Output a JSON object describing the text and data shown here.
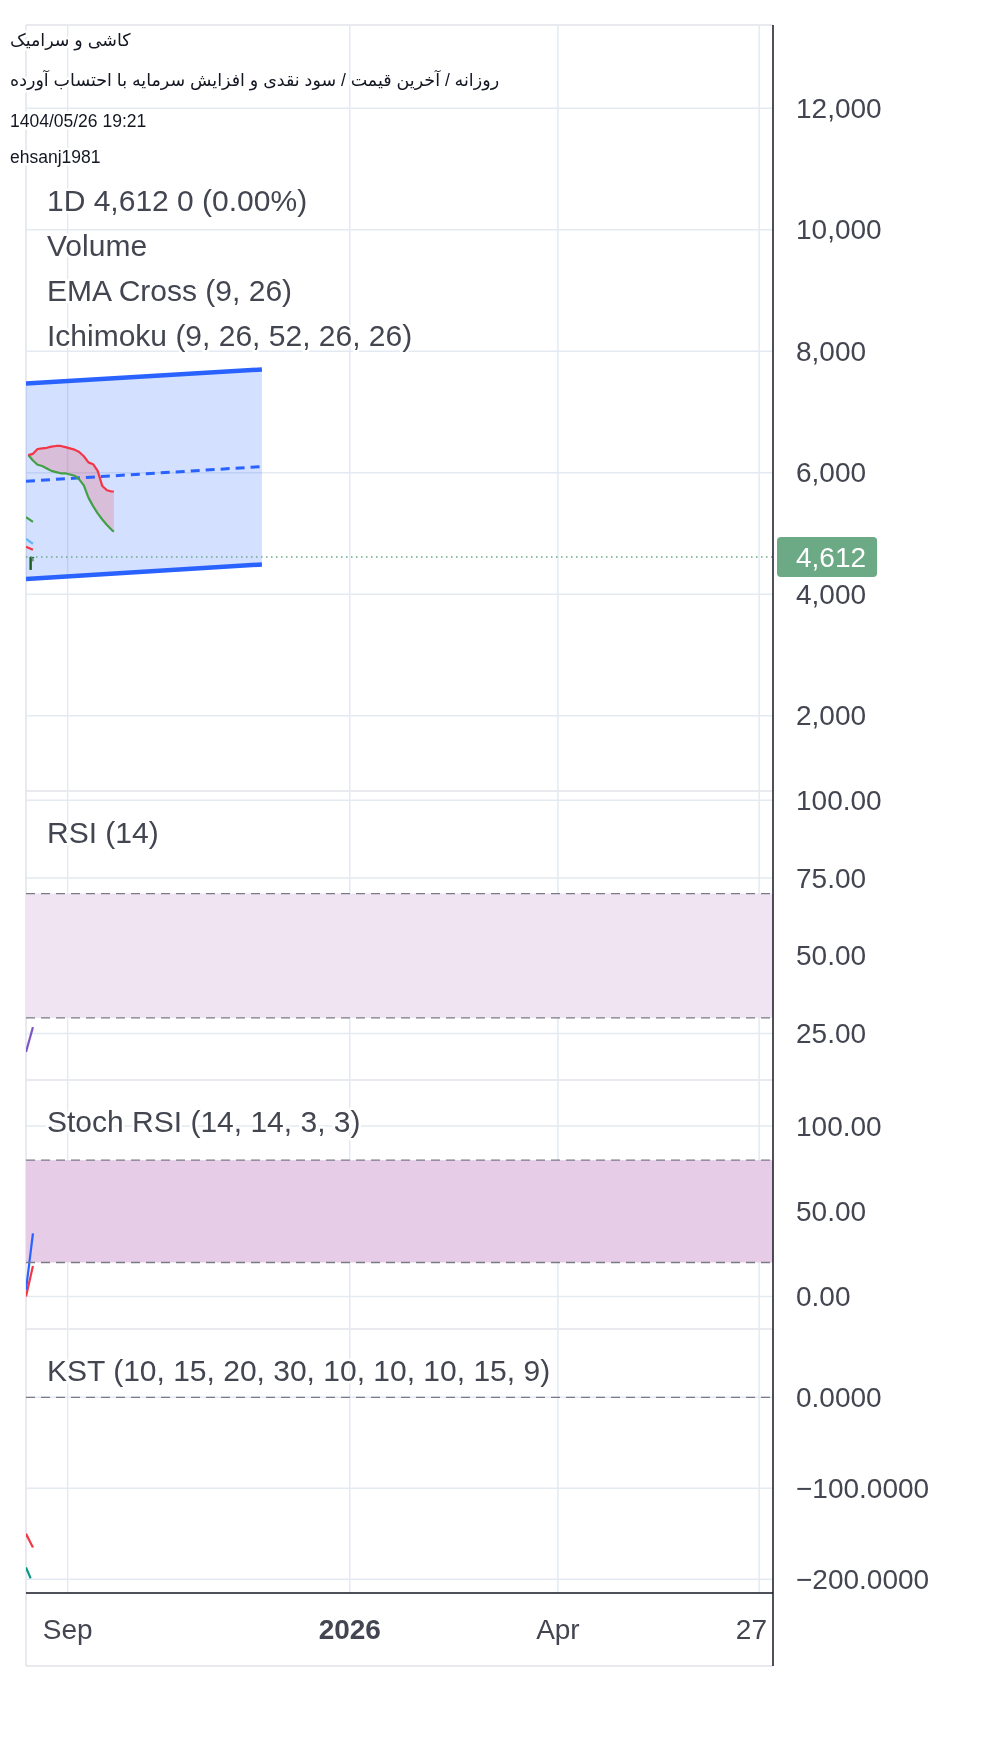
{
  "chart_data": [
    {
      "type": "line",
      "title": "کاشی و سرامیک",
      "subtitle": "روزانه / آخرین قیمت / سود نقدی و افزایش سرمایه با احتساب آورده",
      "annotations": [
        "1404/05/26 19:21",
        "ehsanj1981",
        "1D 4,612 0 (0.00%)",
        "Volume",
        "EMA Cross (9, 26)",
        "Ichimoku (9, 26, 52, 26, 26)"
      ],
      "xlim": [
        "2025-08-14",
        "2026-07-03"
      ],
      "xticks": [
        {
          "value": "2025-09-01",
          "label": null
        },
        {
          "value": "2026-01-01",
          "label": null
        },
        {
          "value": "2026-04-01",
          "label": null
        },
        {
          "value": "2026-06-27",
          "label": null
        }
      ],
      "ylim": [
        760,
        13370
      ],
      "yticks": [
        {
          "value": 2000,
          "label": "2,000"
        },
        {
          "value": 4000,
          "label": "4,000"
        },
        {
          "value": 6000,
          "label": "6,000"
        },
        {
          "value": 8000,
          "label": "8,000"
        },
        {
          "value": 10000,
          "label": "10,000"
        },
        {
          "value": 12000,
          "label": "12,000"
        }
      ],
      "grid": true,
      "tick_labels": "y",
      "series": [
        {
          "color": "#2962ff",
          "x": [
            "2025-08-14",
            "2025-11-24"
          ],
          "values": [
            7470,
            7700
          ]
        },
        {
          "color": "#2962ff",
          "x": [
            "2025-08-14",
            "2025-11-24"
          ],
          "values": [
            4250,
            4490
          ]
        },
        {
          "color": "#2962ff",
          "line_style": "dashed",
          "x": [
            "2025-08-14",
            "2025-11-24"
          ],
          "values": [
            5860,
            6100
          ],
          "lower": [
            4250,
            4490
          ],
          "upper": [
            7470,
            7700
          ]
        },
        {
          "color": "#43a047",
          "x": [
            "2025-08-15",
            "2025-08-17",
            "2025-08-19",
            "2025-08-21",
            "2025-08-23",
            "2025-08-25",
            "2025-08-27",
            "2025-08-29",
            "2025-08-31",
            "2025-09-02",
            "2025-09-04",
            "2025-09-06",
            "2025-09-08",
            "2025-09-10",
            "2025-09-12",
            "2025-09-14",
            "2025-09-16",
            "2025-09-18",
            "2025-09-20",
            "2025-09-21"
          ],
          "values": [
            6290,
            6200,
            6130,
            6110,
            6070,
            6030,
            6010,
            5990,
            5990,
            5970,
            5950,
            5890,
            5790,
            5590,
            5450,
            5330,
            5230,
            5140,
            5060,
            5030
          ]
        },
        {
          "color": "#f23645",
          "x": [
            "2025-08-15",
            "2025-08-17",
            "2025-08-19",
            "2025-08-21",
            "2025-08-23",
            "2025-08-25",
            "2025-08-27",
            "2025-08-29",
            "2025-08-31",
            "2025-09-02",
            "2025-09-04",
            "2025-09-06",
            "2025-09-08",
            "2025-09-10",
            "2025-09-12",
            "2025-09-14",
            "2025-09-16",
            "2025-09-18",
            "2025-09-20",
            "2025-09-21"
          ],
          "values": [
            6290,
            6310,
            6390,
            6400,
            6410,
            6430,
            6440,
            6440,
            6420,
            6400,
            6380,
            6340,
            6270,
            6170,
            6140,
            6030,
            5780,
            5710,
            5690,
            5690
          ],
          "lower": [
            6290,
            6200,
            6130,
            6110,
            6070,
            6030,
            6010,
            5990,
            5990,
            5970,
            5950,
            5890,
            5790,
            5590,
            5450,
            5330,
            5230,
            5140,
            5060,
            5030
          ],
          "upper": [
            6290,
            6310,
            6390,
            6400,
            6410,
            6430,
            6440,
            6440,
            6420,
            6400,
            6380,
            6340,
            6270,
            6170,
            6140,
            6030,
            5780,
            5710,
            5690,
            5690
          ]
        },
        {
          "color": "#43a047",
          "x": [
            "2025-08-14",
            "2025-08-17"
          ],
          "values": [
            5270,
            5190
          ]
        },
        {
          "color": "#64b5f6",
          "x": [
            "2025-08-14",
            "2025-08-17"
          ],
          "values": [
            4910,
            4830
          ]
        },
        {
          "color": "#f23645",
          "x": [
            "2025-08-14",
            "2025-08-17"
          ],
          "values": [
            4780,
            4730
          ]
        },
        {
          "type": "candlestick",
          "color": "#1b5e20",
          "x": [
            "2025-08-16",
            "2025-08-17"
          ],
          "ohlc": [
            [
              4400,
              4620,
              4400,
              4612
            ],
            [
              4612,
              4612,
              4540,
              4612
            ]
          ]
        }
      ],
      "ref_lines": [
        {
          "axis": "y",
          "value": 4612,
          "label": "4,612",
          "color": "#6ca985",
          "line_style": "dotted"
        }
      ]
    },
    {
      "type": "line",
      "title": "RSI (14)",
      "xlim": [
        "2025-08-14",
        "2026-07-03"
      ],
      "xticks": [
        {
          "value": "2025-09-01",
          "label": null
        },
        {
          "value": "2026-01-01",
          "label": null
        },
        {
          "value": "2026-04-01",
          "label": null
        },
        {
          "value": "2026-06-27",
          "label": null
        }
      ],
      "ylim": [
        10,
        103
      ],
      "yticks": [
        {
          "value": 25,
          "label": "25.00"
        },
        {
          "value": 50,
          "label": "50.00"
        },
        {
          "value": 75,
          "label": "75.00"
        },
        {
          "value": 100,
          "label": "100.00"
        }
      ],
      "grid": true,
      "tick_labels": "y",
      "series": [
        {
          "color": "#7e57c2",
          "x": [
            "2025-08-14",
            "2025-08-17"
          ],
          "values": [
            19,
            27
          ]
        }
      ],
      "bands": [
        {
          "axis": "y",
          "from": 30,
          "to": 70,
          "color": "#f0e4f3"
        }
      ],
      "ref_lines": [
        {
          "axis": "y",
          "value": 70,
          "color": "#787b86",
          "line_style": "dashed"
        },
        {
          "axis": "y",
          "value": 30,
          "color": "#787b86",
          "line_style": "dashed"
        }
      ]
    },
    {
      "type": "line",
      "title": "Stoch RSI (14, 14, 3, 3)",
      "xlim": [
        "2025-08-14",
        "2026-07-03"
      ],
      "xticks": [
        {
          "value": "2025-09-01",
          "label": null
        },
        {
          "value": "2026-01-01",
          "label": null
        },
        {
          "value": "2026-04-01",
          "label": null
        },
        {
          "value": "2026-06-27",
          "label": null
        }
      ],
      "ylim": [
        -19,
        127
      ],
      "yticks": [
        {
          "value": 0,
          "label": "0.00"
        },
        {
          "value": 50,
          "label": "50.00"
        },
        {
          "value": 100,
          "label": "100.00"
        }
      ],
      "grid": true,
      "tick_labels": "y",
      "series": [
        {
          "color": "#f23645",
          "x": [
            "2025-08-14",
            "2025-08-17"
          ],
          "values": [
            0,
            18
          ]
        },
        {
          "color": "#2962ff",
          "x": [
            "2025-08-14",
            "2025-08-17"
          ],
          "values": [
            4,
            37
          ]
        }
      ],
      "bands": [
        {
          "axis": "y",
          "from": 20,
          "to": 80,
          "color": "#e6cce6"
        }
      ],
      "ref_lines": [
        {
          "axis": "y",
          "value": 80,
          "color": "#787b86",
          "line_style": "dashed"
        },
        {
          "axis": "y",
          "value": 20,
          "color": "#787b86",
          "line_style": "dashed"
        }
      ]
    },
    {
      "type": "line",
      "title": "KST (10, 15, 20, 30, 10, 10, 10, 15, 9)",
      "xlim": [
        "2025-08-14",
        "2026-07-03"
      ],
      "xticks": [
        {
          "value": "2025-09-01",
          "label": "Sep"
        },
        {
          "value": "2026-01-01",
          "label": "2026"
        },
        {
          "value": "2026-04-01",
          "label": "Apr"
        },
        {
          "value": "2026-06-27",
          "label": "27"
        }
      ],
      "ylim": [
        -215,
        75
      ],
      "yticks": [
        {
          "value": -200,
          "label": "−200.0000"
        },
        {
          "value": -100,
          "label": "−100.0000"
        },
        {
          "value": 0,
          "label": "0.0000"
        }
      ],
      "grid": true,
      "series": [
        {
          "color": "#f23645",
          "x": [
            "2025-08-14",
            "2025-08-17"
          ],
          "values": [
            -150,
            -165
          ]
        },
        {
          "color": "#089981",
          "x": [
            "2025-08-14",
            "2025-08-16"
          ],
          "values": [
            -187,
            -199
          ]
        }
      ],
      "ref_lines": [
        {
          "axis": "y",
          "value": 0,
          "color": "#787b86",
          "line_style": "dashed"
        }
      ]
    }
  ]
}
